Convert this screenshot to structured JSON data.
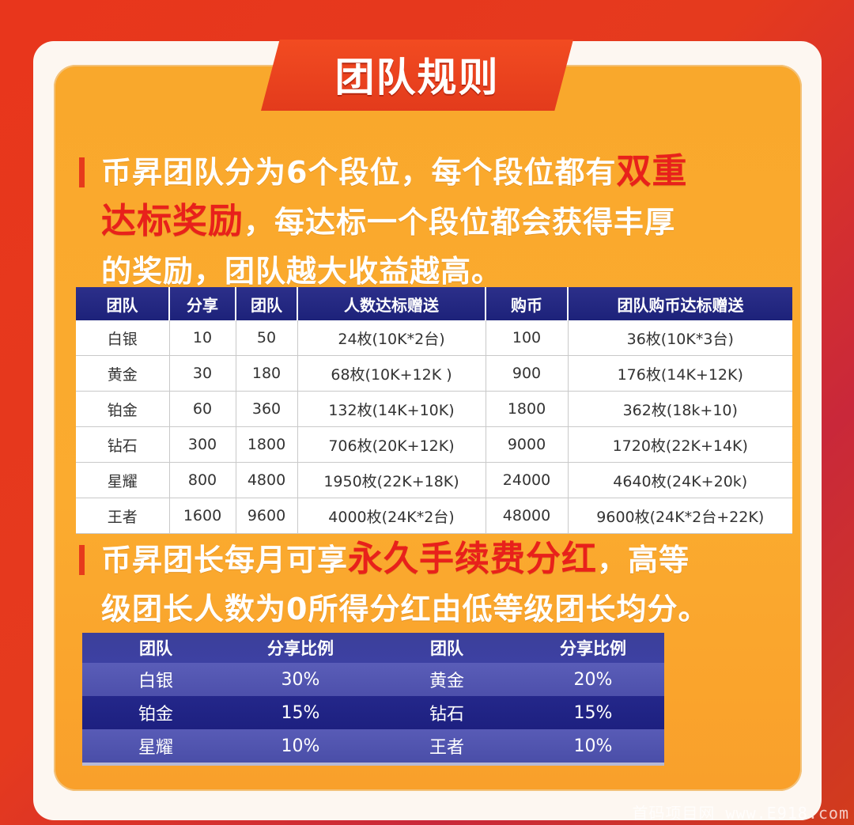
{
  "title": "团队规则",
  "para1": {
    "lines": [
      {
        "pre": "币昇团队分为6个段位，每个段位都有",
        "hl": "双重",
        "post": ""
      },
      {
        "pre": "",
        "hl": "达标奖励",
        "post": "，每达标一个段位都会获得丰厚"
      },
      {
        "pre": "的奖励，团队越大收益越高。",
        "hl": "",
        "post": ""
      }
    ]
  },
  "table1": {
    "headers": [
      "团队",
      "分享",
      "团队",
      "人数达标赠送",
      "购币",
      "团队购币达标赠送"
    ],
    "rows": [
      [
        "白银",
        "10",
        "50",
        "24枚(10K*2台)",
        "100",
        "36枚(10K*3台)"
      ],
      [
        "黄金",
        "30",
        "180",
        "68枚(10K+12K )",
        "900",
        "176枚(14K+12K)"
      ],
      [
        "铂金",
        "60",
        "360",
        "132枚(14K+10K)",
        "1800",
        "362枚(18k+10)"
      ],
      [
        "钻石",
        "300",
        "1800",
        "706枚(20K+12K)",
        "9000",
        "1720枚(22K+14K)"
      ],
      [
        "星耀",
        "800",
        "4800",
        "1950枚(22K+18K)",
        "24000",
        "4640枚(24K+20k)"
      ],
      [
        "王者",
        "1600",
        "9600",
        "4000枚(24K*2台)",
        "48000",
        "9600枚(24K*2台+22K)"
      ]
    ]
  },
  "para2": {
    "lines": [
      {
        "pre": "币昇团长每月可享",
        "hl": "永久手续费分红",
        "post": "，高等"
      },
      {
        "pre": "级团长人数为0所得分红由低等级团长均分。",
        "hl": "",
        "post": ""
      }
    ]
  },
  "table2": {
    "headers": [
      "团队",
      "分享比例",
      "团队",
      "分享比例"
    ],
    "rows": [
      [
        "白银",
        "30%",
        "黄金",
        "20%"
      ],
      [
        "铂金",
        "15%",
        "钻石",
        "15%"
      ],
      [
        "星耀",
        "10%",
        "王者",
        "10%"
      ]
    ]
  },
  "watermark": "首码项目网 www.E918.com",
  "colors": {
    "accent_red": "#e8211b",
    "panel_orange": "#fbab2f",
    "table_navy": "#1d227a"
  }
}
